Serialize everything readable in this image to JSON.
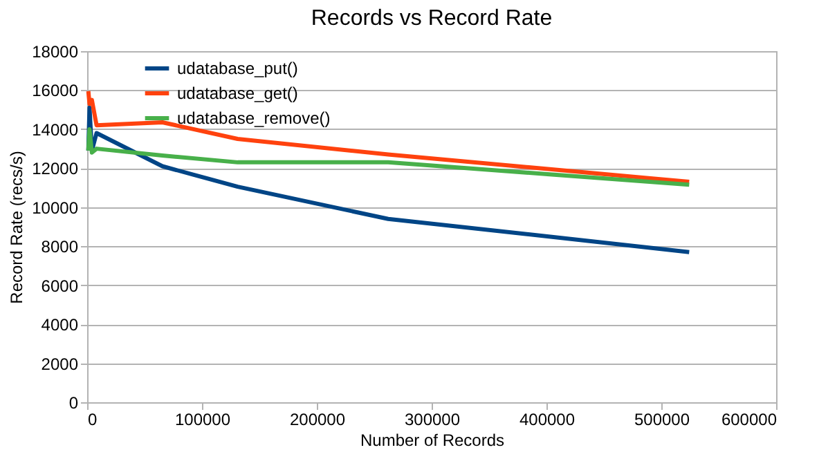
{
  "chart_data": {
    "type": "line",
    "title": "Records vs Record Rate",
    "xlabel": "Number of Records",
    "ylabel": "Record Rate (recs/s)",
    "xlim": [
      0,
      600000
    ],
    "xticks": [
      0,
      100000,
      200000,
      300000,
      400000,
      500000,
      600000
    ],
    "ylim": [
      0,
      18000
    ],
    "yticks": [
      0,
      2000,
      4000,
      6000,
      8000,
      10000,
      12000,
      14000,
      16000,
      18000
    ],
    "grid": "y",
    "legend": "top left",
    "marker": "none",
    "line_style": "solid",
    "series": [
      {
        "name": "udatabase_put()",
        "color": "#004586",
        "x": [
          1024,
          2048,
          4096,
          8192,
          65536,
          131072,
          262144,
          524288
        ],
        "values": [
          12900,
          15100,
          12900,
          13800,
          12100,
          11050,
          9400,
          7700
        ]
      },
      {
        "name": "udatabase_get()",
        "color": "#ff420e",
        "x": [
          1024,
          2048,
          4096,
          8192,
          65536,
          131072,
          262144,
          524288
        ],
        "values": [
          15950,
          15300,
          15500,
          14200,
          14350,
          13500,
          12700,
          11300
        ]
      },
      {
        "name": "udatabase_remove()",
        "color": "#48b04a",
        "x": [
          1024,
          2048,
          4096,
          8192,
          65536,
          131072,
          262144,
          524288
        ],
        "values": [
          12900,
          14000,
          12800,
          13000,
          12650,
          12300,
          12300,
          11150
        ]
      }
    ]
  }
}
